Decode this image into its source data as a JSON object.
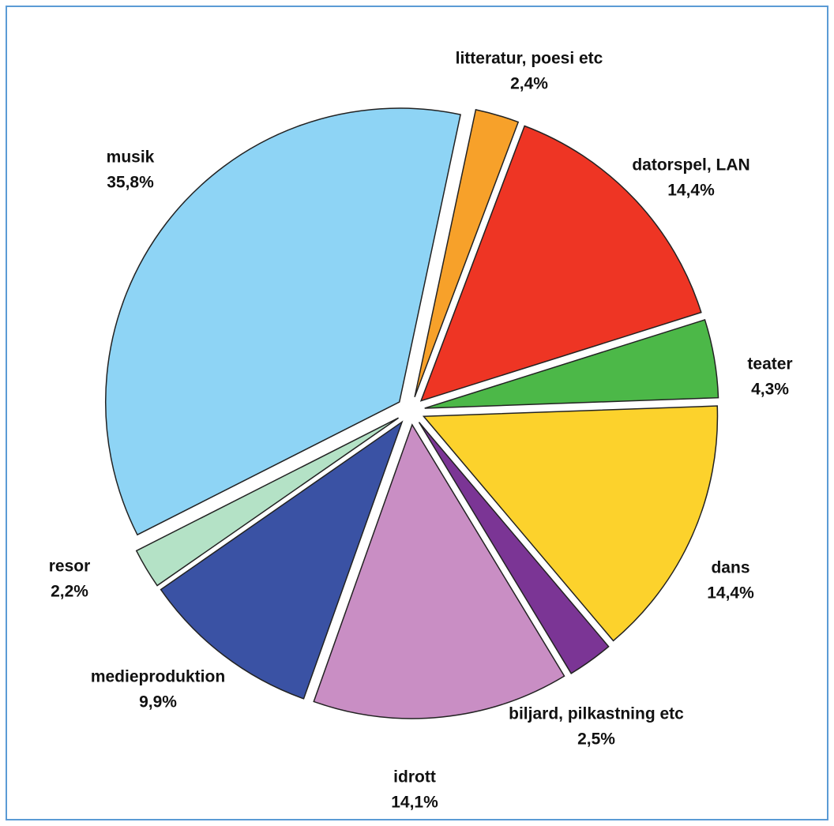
{
  "chart_data": {
    "type": "pie",
    "categories": [
      "litteratur, poesi etc",
      "datorspel, LAN",
      "teater",
      "dans",
      "biljard, pilkastning etc",
      "idrott",
      "medieproduktion",
      "resor",
      "musik"
    ],
    "values": [
      2.4,
      14.4,
      4.3,
      14.4,
      2.5,
      14.1,
      9.9,
      2.2,
      35.8
    ],
    "value_labels": [
      "2,4%",
      "14,4%",
      "4,3%",
      "14,4%",
      "2,5%",
      "14,1%",
      "9,9%",
      "2,2%",
      "35,8%"
    ],
    "colors": [
      "#f7a12a",
      "#ee3524",
      "#4cb848",
      "#fcd22c",
      "#7b3595",
      "#c98ec4",
      "#3a52a4",
      "#b4e2c6",
      "#8ed4f5"
    ]
  }
}
